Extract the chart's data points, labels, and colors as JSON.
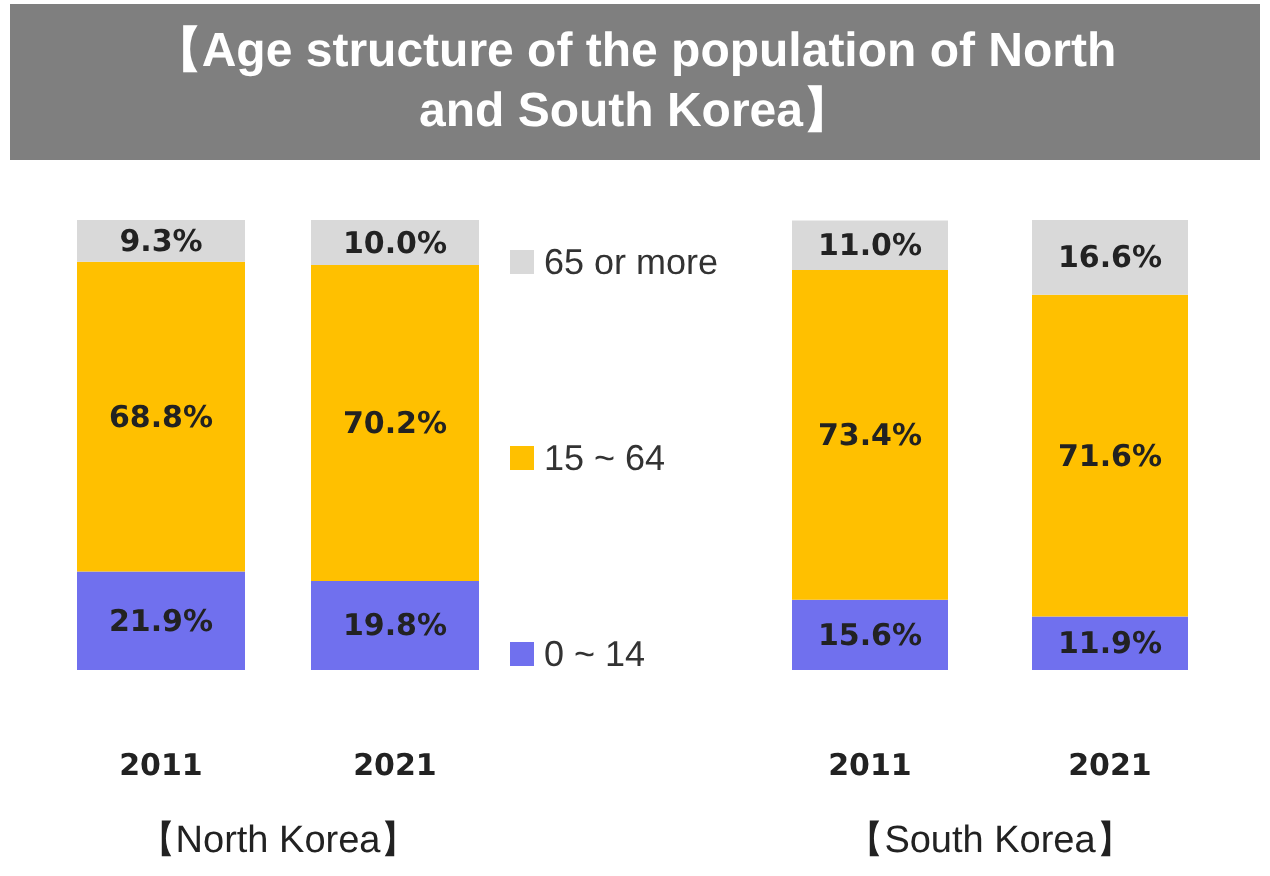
{
  "chart_data": [
    {
      "type": "bar",
      "title": "【Age structure of the population of North and South Korea】",
      "xlabel": "【North Korea】",
      "categories": [
        "2011",
        "2021"
      ],
      "stacked": true,
      "legend": "right",
      "tick_labels": "x",
      "series": [
        {
          "name": "0 ~ 14",
          "color": "#7070ee",
          "values": [
            21.9,
            19.8
          ],
          "value_labels": [
            "21.9%",
            "19.8%"
          ]
        },
        {
          "name": "15 ~ 64",
          "color": "#ffc000",
          "values": [
            68.8,
            70.2
          ],
          "value_labels": [
            "68.8%",
            "70.2%"
          ]
        },
        {
          "name": "65 or more",
          "color": "#d9d9d9",
          "values": [
            9.3,
            10.0
          ],
          "value_labels": [
            "9.3%",
            "10.0%"
          ]
        }
      ]
    },
    {
      "type": "bar",
      "xlabel": "【South Korea】",
      "categories": [
        "2011",
        "2021"
      ],
      "stacked": true,
      "tick_labels": "x",
      "series": [
        {
          "color": "#7070ee",
          "values": [
            15.6,
            11.9
          ],
          "value_labels": [
            "15.6%",
            "11.9%"
          ]
        },
        {
          "color": "#ffc000",
          "values": [
            73.4,
            71.6
          ],
          "value_labels": [
            "73.4%",
            "71.6%"
          ]
        },
        {
          "color": "#d9d9d9",
          "values": [
            11.0,
            16.6
          ],
          "value_labels": [
            "11.0%",
            "16.6%"
          ]
        }
      ]
    }
  ]
}
